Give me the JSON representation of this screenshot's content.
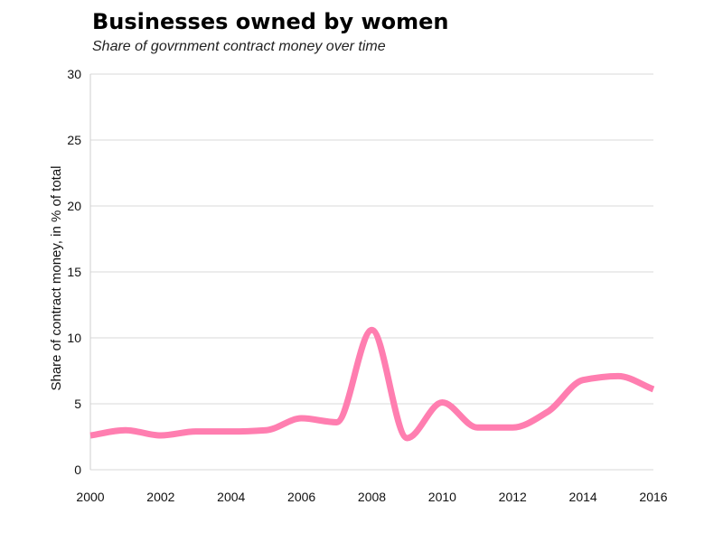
{
  "title": "Businesses owned by women",
  "subtitle": "Share of govrnment contract money over time",
  "colors": {
    "line": "#ff7eb0",
    "grid": "#d9d9d9",
    "axis": "#cfcfcf"
  },
  "chart_data": {
    "type": "line",
    "title": "Businesses owned by women",
    "subtitle": "Share of govrnment contract money over time",
    "xlabel": "",
    "ylabel": "Share of contract money, in % of total",
    "xlim": [
      2000,
      2016
    ],
    "ylim": [
      0,
      30
    ],
    "x_ticks": [
      "2000",
      "2002",
      "2004",
      "2006",
      "2008",
      "2010",
      "2012",
      "2014",
      "2016"
    ],
    "y_ticks": [
      "0",
      "5",
      "10",
      "15",
      "20",
      "25",
      "30"
    ],
    "grid": true,
    "series": [
      {
        "x": [
          2000,
          2001,
          2002,
          2003,
          2004,
          2005,
          2006,
          2007,
          2008,
          2009,
          2010,
          2011,
          2012,
          2013,
          2014,
          2015,
          2016
        ],
        "values": [
          2.6,
          3.0,
          2.6,
          2.9,
          2.9,
          3.0,
          3.9,
          3.6,
          10.6,
          2.4,
          5.1,
          3.2,
          3.2,
          4.4,
          6.8,
          7.1,
          6.1
        ]
      }
    ]
  }
}
